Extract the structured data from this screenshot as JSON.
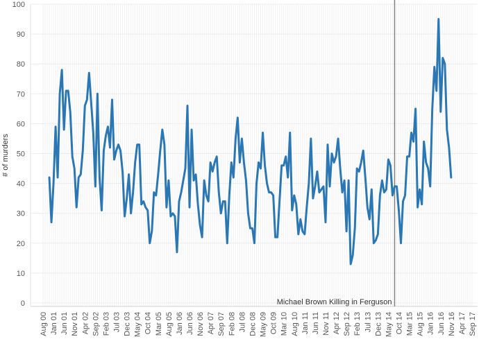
{
  "chart_data": {
    "type": "line",
    "title": "",
    "xlabel": "",
    "ylabel": "# of murders",
    "ylim": [
      0,
      100
    ],
    "y_ticks": [
      "0",
      "10",
      "20",
      "30",
      "40",
      "50",
      "60",
      "70",
      "80",
      "90",
      "100"
    ],
    "x_start": "2000-11",
    "x_tick_labels": [
      "Aug 00",
      "Jan 01",
      "Jun 01",
      "Nov 01",
      "Apr 02",
      "Sep 02",
      "Feb 03",
      "Jul 03",
      "Dec 03",
      "May 04",
      "Oct 04",
      "Mar 05",
      "Aug 05",
      "Jan 06",
      "Jun 06",
      "Nov 06",
      "Apr 07",
      "Sep 07",
      "Feb 08",
      "Jul 08",
      "Dec 08",
      "May 09",
      "Oct 09",
      "Mar 10",
      "Aug 10",
      "Jan 11",
      "Jun 11",
      "Nov 11",
      "Apr 12",
      "Sep 12",
      "Feb 13",
      "Jul 13",
      "Dec 13",
      "May 14",
      "Oct 14",
      "Mar 15",
      "Aug 15",
      "Jan 16",
      "Jun 16",
      "Nov 16",
      "Apr 17",
      "Sep 17"
    ],
    "grid": true,
    "series": [
      {
        "color": "#2a77b4",
        "values": [
          42,
          27,
          40,
          59,
          42,
          70,
          78,
          58,
          71,
          71,
          64,
          49,
          45,
          32,
          42,
          43,
          51,
          66,
          68,
          77,
          67,
          57,
          39,
          70,
          42,
          31,
          51,
          56,
          59,
          52,
          68,
          48,
          51,
          53,
          51,
          44,
          29,
          35,
          43,
          30,
          37,
          47,
          53,
          53,
          33,
          34,
          32,
          31,
          20,
          24,
          37,
          36,
          43,
          51,
          58,
          53,
          32,
          41,
          29,
          30,
          29,
          17,
          34,
          37,
          41,
          45,
          66,
          32,
          58,
          41,
          43,
          33,
          26,
          22,
          41,
          36,
          34,
          47,
          44,
          47,
          49,
          37,
          30,
          34,
          34,
          20,
          36,
          47,
          42,
          55,
          62,
          47,
          55,
          47,
          41,
          30,
          25,
          25,
          20,
          40,
          47,
          45,
          57,
          46,
          40,
          37,
          37,
          36,
          22,
          22,
          34,
          46,
          46,
          49,
          42,
          57,
          31,
          36,
          33,
          23,
          28,
          24,
          23,
          32,
          40,
          55,
          35,
          39,
          44,
          37,
          38,
          39,
          27,
          53,
          39,
          50,
          47,
          49,
          55,
          45,
          37,
          41,
          24,
          41,
          13,
          16,
          25,
          45,
          44,
          47,
          51,
          42,
          32,
          28,
          38,
          20,
          21,
          23,
          36,
          41,
          37,
          38,
          48,
          46,
          36,
          39,
          39,
          31,
          20,
          34,
          36,
          49,
          49,
          57,
          54,
          65,
          32,
          38,
          33,
          54,
          47,
          45,
          39,
          65,
          79,
          71,
          95,
          64,
          82,
          80,
          58,
          52,
          42
        ]
      }
    ],
    "annotations": [
      {
        "text": "Michael Brown Killing in Ferguson",
        "x": "2014-08"
      }
    ]
  }
}
